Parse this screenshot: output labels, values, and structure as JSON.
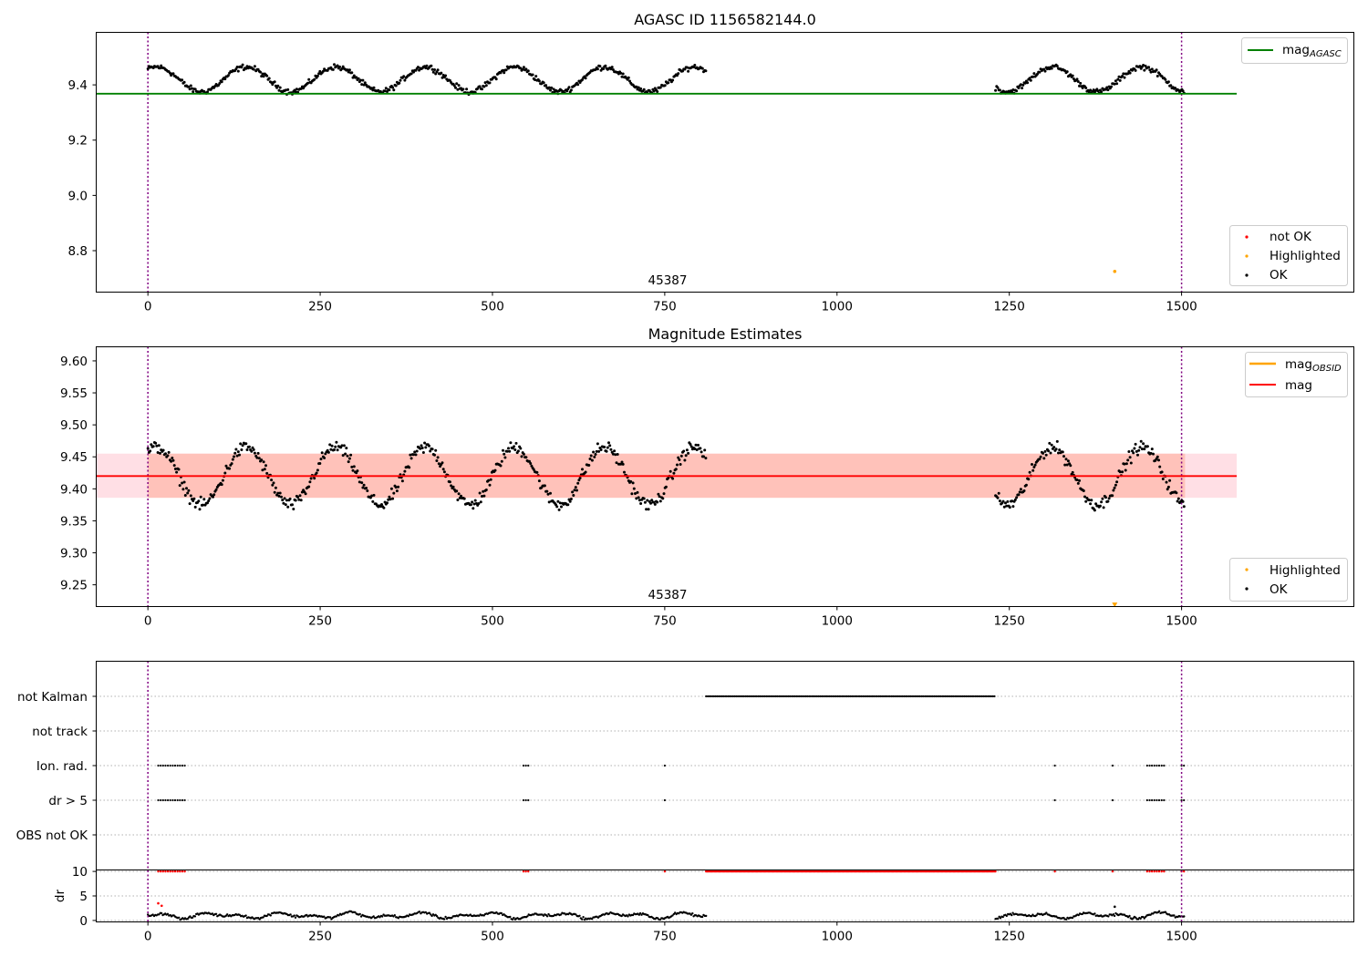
{
  "chart_data": [
    {
      "type": "scatter",
      "title": "AGASC ID 1156582144.0",
      "xlim": [
        -75,
        1750
      ],
      "ylim": [
        8.65,
        9.59
      ],
      "xticks": [
        "0",
        "250",
        "500",
        "750",
        "1000",
        "1250",
        "1500"
      ],
      "yticks": [
        "8.8",
        "9.0",
        "9.2",
        "9.4"
      ],
      "vlines": [
        0,
        1500
      ],
      "hline": {
        "label": "mag",
        "label_sub": "AGASC",
        "y": 9.368,
        "x_range": [
          -75,
          1580
        ],
        "color": "#008000"
      },
      "annotation": {
        "text": "45387",
        "x": 750,
        "y": 8.69
      },
      "highlighted_point": {
        "x": 1403,
        "y": 8.725,
        "color": "#ffa500"
      },
      "segments": [
        {
          "x_start": 0,
          "x_end": 810,
          "level": 9.42,
          "amplitude": 0.045,
          "period": 130
        },
        {
          "x_start": 1230,
          "x_end": 1505,
          "level": 9.42,
          "amplitude": 0.045,
          "period": 130
        }
      ],
      "legend_top": {
        "position": "upper right",
        "entries": [
          {
            "label": "mag",
            "sub": "AGASC",
            "color": "#008000"
          }
        ]
      },
      "legend_bottom": {
        "position": "lower right",
        "entries": [
          {
            "label": "not OK",
            "color": "#ff0000"
          },
          {
            "label": "Highlighted",
            "color": "#ffa500"
          },
          {
            "label": "OK",
            "color": "#000000"
          }
        ]
      }
    },
    {
      "type": "scatter",
      "title": "Magnitude Estimates",
      "xlim": [
        -75,
        1750
      ],
      "ylim": [
        9.216,
        9.622
      ],
      "xticks": [
        "0",
        "250",
        "500",
        "750",
        "1000",
        "1250",
        "1500"
      ],
      "yticks": [
        "9.25",
        "9.30",
        "9.35",
        "9.40",
        "9.45",
        "9.50",
        "9.55",
        "9.60"
      ],
      "vlines": [
        0,
        1500
      ],
      "mag_line": {
        "label": "mag",
        "y": 9.42,
        "x_range": [
          -75,
          1580
        ],
        "color": "#ff0000"
      },
      "mag_band": {
        "y_low": 9.386,
        "y_high": 9.455,
        "x_range": [
          -75,
          1580
        ],
        "color": "#ff8c69"
      },
      "obsid_band": {
        "label": "mag",
        "sub": "OBSID",
        "color": "#ffa500",
        "x_range": [
          0,
          1505
        ]
      },
      "annotation": {
        "text": "45387",
        "x": 750,
        "y": 9.227
      },
      "highlighted_marker": {
        "x": 1403,
        "y": 9.218,
        "color": "#ffa500"
      },
      "segments": [
        {
          "x_start": 0,
          "x_end": 810,
          "level": 9.42,
          "amplitude": 0.045,
          "period": 130
        },
        {
          "x_start": 1230,
          "x_end": 1505,
          "level": 9.42,
          "amplitude": 0.045,
          "period": 130
        }
      ],
      "legend_top": {
        "position": "upper right",
        "entries": [
          {
            "label": "mag",
            "sub": "OBSID",
            "color": "#ffa500"
          },
          {
            "label": "mag",
            "color": "#ff0000"
          }
        ]
      },
      "legend_bottom": {
        "position": "lower right",
        "entries": [
          {
            "label": "Highlighted",
            "color": "#ffa500"
          },
          {
            "label": "OK",
            "color": "#000000"
          }
        ]
      }
    },
    {
      "type": "scatter",
      "xlim": [
        -75,
        1750
      ],
      "xticks": [
        "0",
        "250",
        "500",
        "750",
        "1000",
        "1250",
        "1500"
      ],
      "vlines": [
        0,
        1500
      ],
      "flag_rows": [
        {
          "label": "not Kalman",
          "ranges": [
            [
              810,
              1230
            ]
          ]
        },
        {
          "label": "not track",
          "ranges": []
        },
        {
          "label": "Ion. rad.",
          "ranges": [
            [
              15,
              55
            ],
            [
              545,
              555
            ],
            [
              750,
              750
            ],
            [
              1316,
              1316
            ],
            [
              1400,
              1400
            ],
            [
              1450,
              1475
            ],
            [
              1500,
              1505
            ]
          ]
        },
        {
          "label": "dr > 5",
          "ranges": [
            [
              15,
              55
            ],
            [
              545,
              555
            ],
            [
              750,
              750
            ],
            [
              1316,
              1316
            ],
            [
              1400,
              1400
            ],
            [
              1450,
              1475
            ],
            [
              1500,
              1505
            ]
          ]
        },
        {
          "label": "OBS not OK",
          "ranges": []
        }
      ],
      "dr": {
        "ylabel": "dr",
        "yticks": [
          "0",
          "5",
          "10"
        ],
        "ylim": [
          -0.3,
          10.3
        ],
        "flag_value": 10,
        "red_flag_ranges": [
          [
            15,
            55
          ],
          [
            545,
            555
          ],
          [
            750,
            750
          ],
          [
            810,
            1230
          ],
          [
            1316,
            1316
          ],
          [
            1400,
            1400
          ],
          [
            1450,
            1475
          ],
          [
            1500,
            1505
          ]
        ],
        "segments": [
          [
            0,
            810
          ],
          [
            1230,
            1505
          ]
        ],
        "base": 1.0,
        "outliers": [
          {
            "x": 15,
            "y": 3.5,
            "color": "#ff0000"
          },
          {
            "x": 20,
            "y": 3.0,
            "color": "#ff0000"
          },
          {
            "x": 1403,
            "y": 2.8,
            "color": "#000000"
          }
        ]
      }
    }
  ]
}
